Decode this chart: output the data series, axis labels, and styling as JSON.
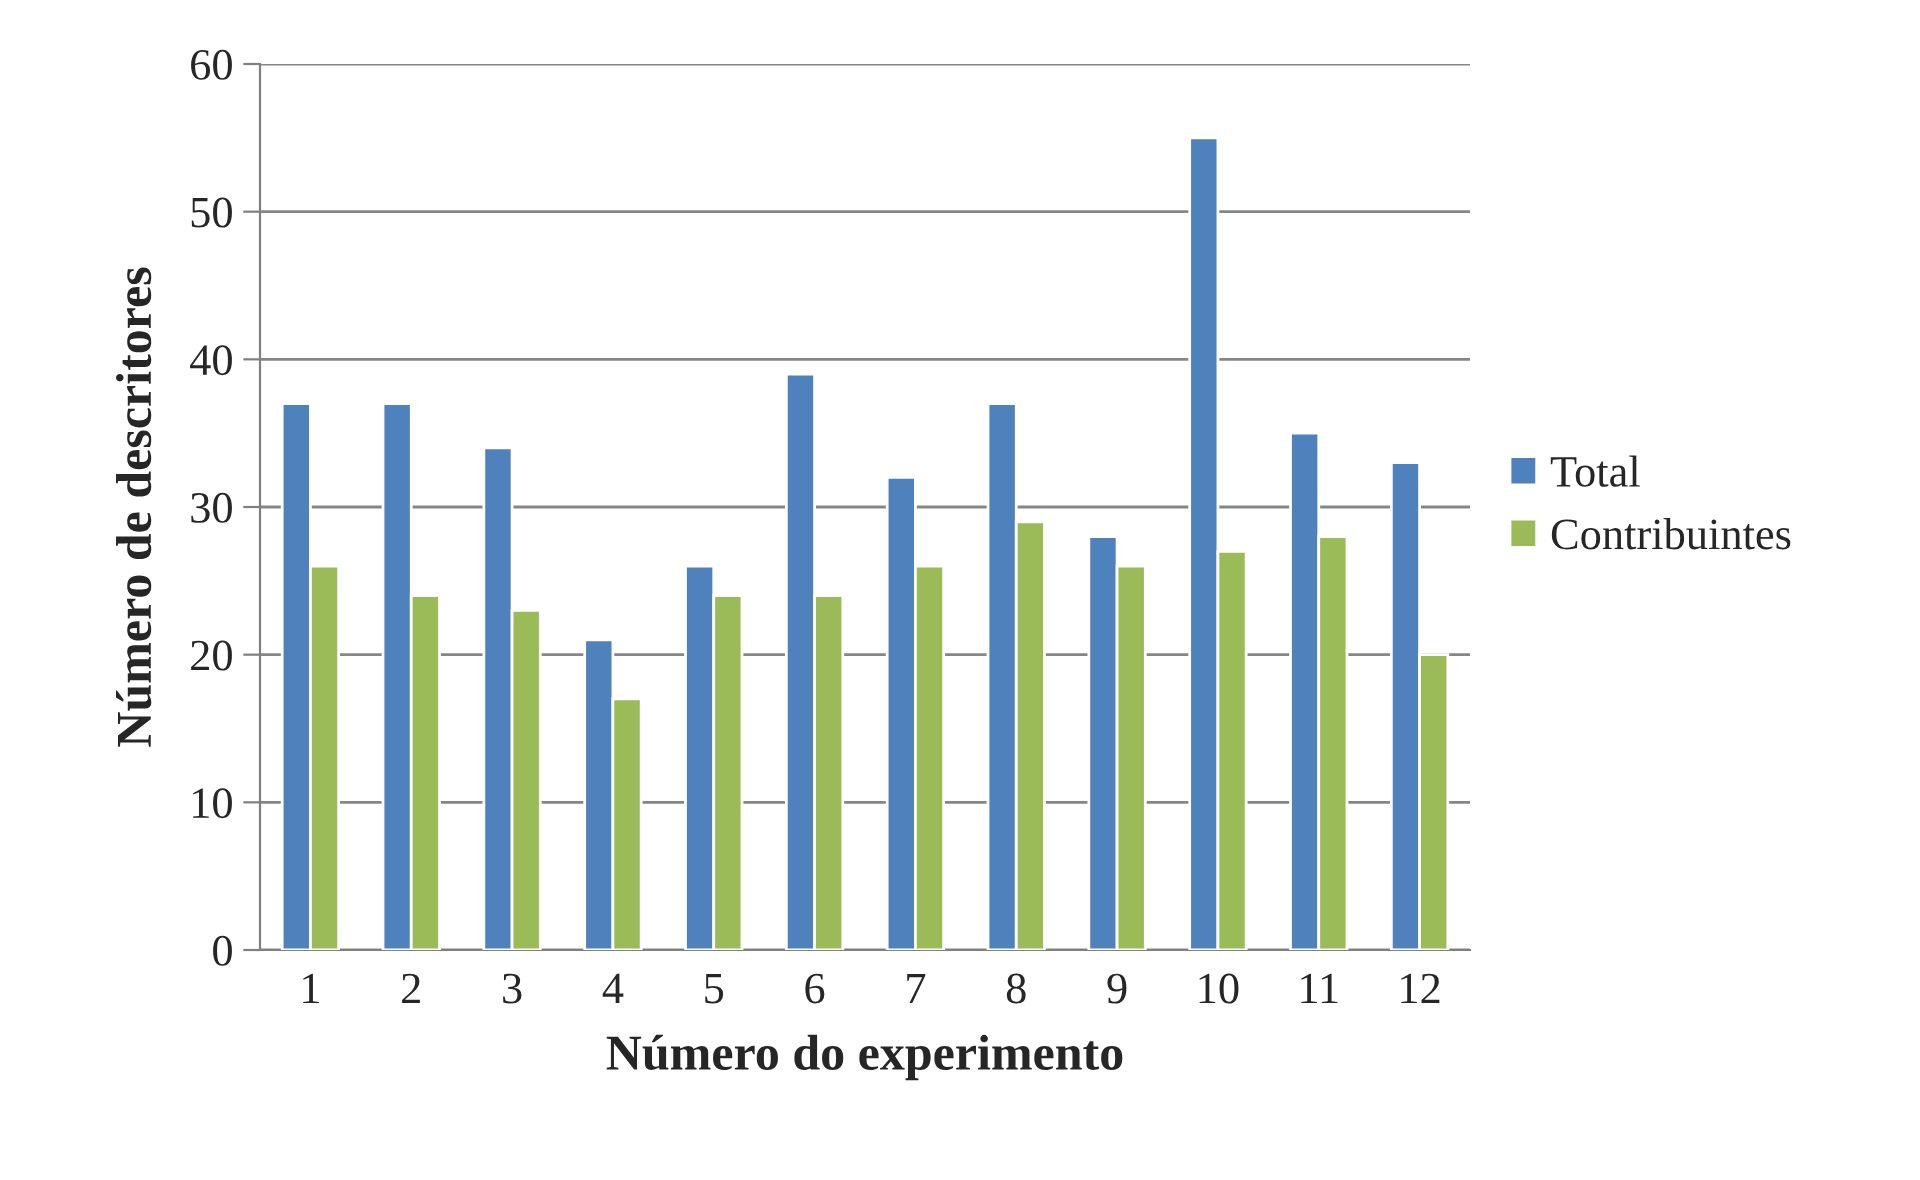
{
  "chart_data": {
    "type": "bar",
    "xlabel": "Número do experimento",
    "ylabel": "Número de descritores",
    "categories": [
      "1",
      "2",
      "3",
      "4",
      "5",
      "6",
      "7",
      "8",
      "9",
      "10",
      "11",
      "12"
    ],
    "series": [
      {
        "name": "Total",
        "color": "#4f81bd",
        "values": [
          37,
          37,
          34,
          21,
          26,
          39,
          32,
          37,
          28,
          55,
          35,
          33
        ]
      },
      {
        "name": "Contribuintes",
        "color": "#9bbb59",
        "values": [
          26,
          24,
          23,
          17,
          24,
          24,
          26,
          29,
          26,
          27,
          28,
          20
        ]
      }
    ],
    "ylim": [
      0,
      60
    ],
    "yticks": [
      0,
      10,
      20,
      30,
      40,
      50,
      60
    ],
    "grid": "y",
    "legend": "right"
  }
}
